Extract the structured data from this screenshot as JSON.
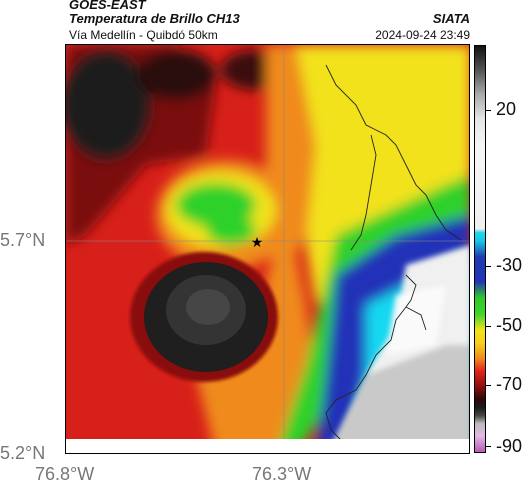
{
  "header": {
    "satellite": "GOES-EAST",
    "product": "Temperatura de Brillo CH13",
    "location": "Vía Medellín - Quibdó 50km",
    "organization": "SIATA",
    "timestamp": "2024-09-24 23:49"
  },
  "axes": {
    "y_ticks": [
      "5.7°N",
      "5.2°N"
    ],
    "x_ticks": [
      "76.8°W",
      "76.3°W"
    ]
  },
  "colorbar": {
    "labels": [
      "20",
      "-30",
      "-50",
      "-70",
      "-90"
    ]
  },
  "marker": {
    "symbol": "★",
    "name": "location-star"
  },
  "colors": {
    "black": "#1a1a1a",
    "dark_red": "#8a0e0e",
    "red": "#e0261b",
    "orange": "#f08a1e",
    "yellow": "#f2e21a",
    "green": "#2fd12a",
    "blue": "#2230b8",
    "cyan": "#18d8f0",
    "white": "#f4f4f4",
    "grey": "#c9c9c9"
  }
}
